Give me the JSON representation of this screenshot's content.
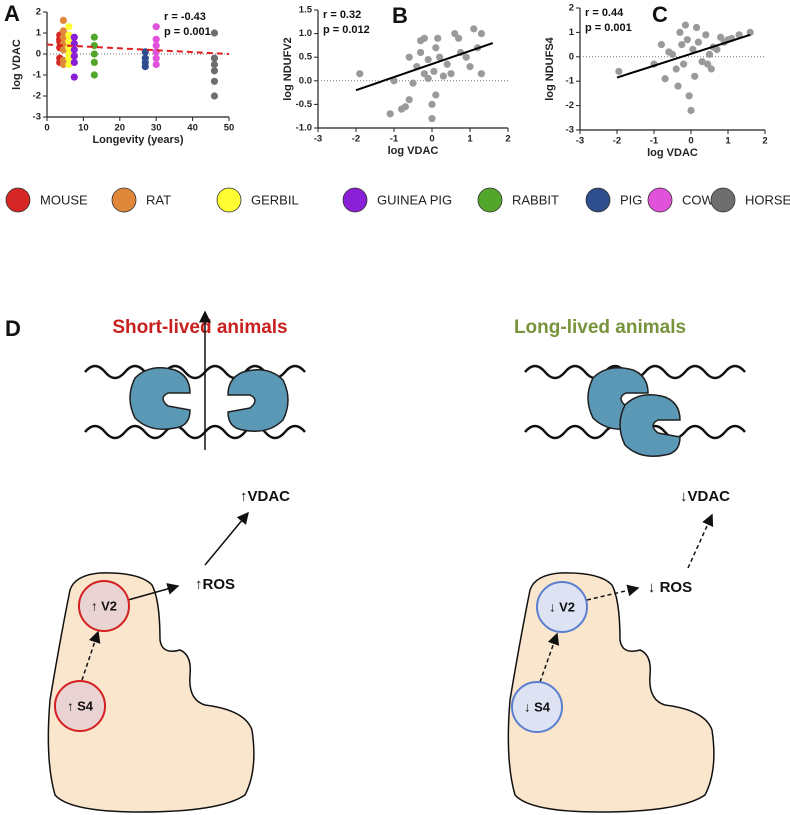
{
  "chart_data": [
    {
      "type": "scatter",
      "panel": "A",
      "x_label": "Longevity (years)",
      "y_label": "log VDAC",
      "annotations": [
        "r = -0.43",
        "p = 0.001"
      ],
      "xlim": [
        0,
        50
      ],
      "xticks": [
        0,
        10,
        20,
        30,
        40,
        50
      ],
      "ylim": [
        -3,
        2
      ],
      "yticks": [
        -3,
        -2,
        -1,
        0,
        1,
        2
      ],
      "reference_line": 0,
      "fit_line": {
        "x": [
          0,
          50
        ],
        "y": [
          0.45,
          0.0
        ],
        "color": "#e02020"
      },
      "series": [
        {
          "name": "MOUSE",
          "color": "#d62626",
          "x": [
            3.5,
            3.5,
            3.5,
            3.5,
            3.5,
            3.5
          ],
          "values": [
            0.9,
            0.6,
            0.3,
            -0.2,
            -0.4,
            0.7
          ]
        },
        {
          "name": "RAT",
          "color": "#e0883a",
          "x": [
            4.5,
            4.5,
            4.5,
            4.5,
            4.5,
            4.5,
            4.5
          ],
          "values": [
            1.6,
            1.1,
            0.5,
            0.2,
            -0.3,
            -0.5,
            0.8
          ]
        },
        {
          "name": "GERBIL",
          "color": "#ffff33",
          "x": [
            6,
            6,
            6,
            6,
            6,
            6,
            6
          ],
          "values": [
            1.3,
            0.9,
            0.6,
            0.3,
            0,
            -0.2,
            -0.5
          ]
        },
        {
          "name": "GUINEA PIG",
          "color": "#8a1fd8",
          "x": [
            7.5,
            7.5,
            7.5,
            7.5,
            7.5,
            7.5
          ],
          "values": [
            0.8,
            0.5,
            0.2,
            -0.1,
            -0.4,
            -1.1
          ]
        },
        {
          "name": "RABBIT",
          "color": "#52a629",
          "x": [
            13,
            13,
            13,
            13,
            13
          ],
          "values": [
            0.8,
            0.4,
            0,
            -0.4,
            -1.0
          ]
        },
        {
          "name": "PIG",
          "color": "#2e4d8c",
          "x": [
            27,
            27,
            27,
            27
          ],
          "values": [
            0.1,
            -0.2,
            -0.4,
            -0.6
          ]
        },
        {
          "name": "COW",
          "color": "#e052d9",
          "x": [
            30,
            30,
            30,
            30,
            30,
            30
          ],
          "values": [
            1.3,
            0.7,
            0.4,
            0.1,
            -0.2,
            -0.5
          ]
        },
        {
          "name": "HORSE",
          "color": "#6e6e6e",
          "x": [
            46,
            46,
            46,
            46,
            46,
            46
          ],
          "values": [
            1.0,
            -0.2,
            -0.5,
            -0.8,
            -1.3,
            -2.0
          ]
        }
      ]
    },
    {
      "type": "scatter",
      "panel": "B",
      "x_label": "log VDAC",
      "y_label": "log NDUFV2",
      "annotations": [
        "r = 0.32",
        "p = 0.012"
      ],
      "xlim": [
        -3,
        2
      ],
      "xticks": [
        -3,
        -2,
        -1,
        0,
        1,
        2
      ],
      "ylim": [
        -1.0,
        1.5
      ],
      "yticks": [
        {
          "value": -1.0,
          "label": "-1.0"
        },
        -0.5,
        {
          "value": 0.0,
          "label": "0.0"
        },
        0.5,
        {
          "value": 1.0,
          "label": "1.0"
        },
        1.5
      ],
      "reference_line": 0,
      "fit_line": {
        "x": [
          -2,
          1.6
        ],
        "y": [
          -0.2,
          0.8
        ],
        "color": "#000000"
      },
      "series": [
        {
          "color": "#9a9a9a",
          "x": [
            -1.9,
            -1.0,
            -1.1,
            -0.8,
            -0.6,
            -0.5,
            -0.4,
            -0.3,
            -0.3,
            -0.2,
            -0.1,
            -0.1,
            0,
            0,
            0.05,
            0.1,
            0.1,
            0.15,
            0.2,
            0.3,
            0.4,
            0.5,
            0.6,
            0.7,
            0.75,
            0.9,
            1.0,
            1.1,
            1.2,
            1.3,
            1.3,
            -0.6,
            -0.2,
            -0.7
          ],
          "values": [
            0.15,
            0.0,
            -0.7,
            -0.6,
            -0.4,
            -0.05,
            0.3,
            0.85,
            0.6,
            0.9,
            0.45,
            0.05,
            -0.5,
            -0.8,
            0.2,
            0.7,
            -0.3,
            0.9,
            0.5,
            0.1,
            0.35,
            0.15,
            1.0,
            0.9,
            0.6,
            0.5,
            0.3,
            1.1,
            0.7,
            1.0,
            0.15,
            0.5,
            0.15,
            -0.55
          ]
        }
      ]
    },
    {
      "type": "scatter",
      "panel": "C",
      "x_label": "log VDAC",
      "y_label": "log NDUFS4",
      "annotations": [
        "r = 0.44",
        "p = 0.001"
      ],
      "xlim": [
        -3,
        2
      ],
      "xticks": [
        -3,
        -2,
        -1,
        0,
        1,
        2
      ],
      "ylim": [
        -3,
        2
      ],
      "yticks": [
        -3,
        -2,
        -1,
        0,
        1,
        2
      ],
      "reference_line": 0,
      "fit_line": {
        "x": [
          -2,
          1.6
        ],
        "y": [
          -0.85,
          0.9
        ],
        "color": "#000000"
      },
      "series": [
        {
          "color": "#9a9a9a",
          "x": [
            -1.95,
            -1.0,
            -0.8,
            -0.7,
            -0.5,
            -0.4,
            -0.35,
            -0.3,
            -0.25,
            -0.2,
            -0.15,
            -0.1,
            -0.05,
            0,
            0.05,
            0.1,
            0.15,
            0.2,
            0.3,
            0.4,
            0.5,
            0.55,
            0.6,
            0.7,
            0.8,
            0.9,
            1.0,
            1.1,
            1.3,
            1.6,
            -0.6,
            0.45
          ],
          "values": [
            -0.6,
            -0.3,
            0.5,
            -0.9,
            0.1,
            -0.5,
            -1.2,
            1.0,
            0.5,
            -0.3,
            1.3,
            0.7,
            -1.6,
            -2.2,
            0.3,
            -0.8,
            1.2,
            0.6,
            -0.2,
            0.9,
            0.1,
            -0.5,
            0.4,
            0.3,
            0.8,
            0.6,
            0.7,
            0.75,
            0.9,
            1.0,
            0.2,
            -0.3
          ]
        }
      ]
    }
  ],
  "diagram": {
    "label": "D",
    "short": {
      "title": "Short-lived animals",
      "vdac": "↑VDAC",
      "ros": "↑ROS",
      "v2": "↑ V2",
      "s4": "↑ S4"
    },
    "long": {
      "title": "Long-lived animals",
      "vdac": "↓VDAC",
      "ros": "↓ ROS",
      "v2": "↓ V2",
      "s4": "↓ S4"
    }
  }
}
